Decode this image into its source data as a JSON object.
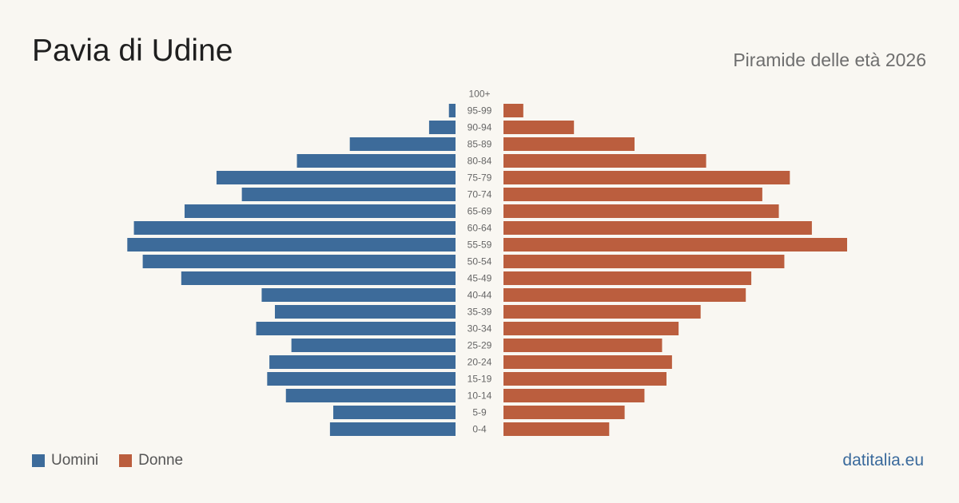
{
  "header": {
    "title": "Pavia di Udine",
    "subtitle": "Piramide delle età 2026"
  },
  "legend": {
    "male_label": "Uomini",
    "female_label": "Donne"
  },
  "brand": "datitalia.eu",
  "colors": {
    "male": "#3d6b9a",
    "female": "#bb5e3e",
    "age_label": "#666666"
  },
  "chart_data": {
    "type": "bar",
    "orientation": "horizontal-pyramid",
    "categories": [
      "100+",
      "95-99",
      "90-94",
      "85-89",
      "80-84",
      "75-79",
      "70-74",
      "65-69",
      "60-64",
      "55-59",
      "50-54",
      "45-49",
      "40-44",
      "35-39",
      "30-34",
      "25-29",
      "20-24",
      "15-19",
      "10-14",
      "5-9",
      "0-4"
    ],
    "series": [
      {
        "name": "Uomini",
        "values": [
          0,
          6,
          24,
          96,
          144,
          217,
          194,
          246,
          292,
          298,
          284,
          249,
          176,
          164,
          181,
          149,
          169,
          171,
          154,
          111,
          114
        ]
      },
      {
        "name": "Donne",
        "values": [
          0,
          18,
          64,
          119,
          184,
          260,
          235,
          250,
          280,
          312,
          255,
          225,
          220,
          179,
          159,
          144,
          153,
          148,
          128,
          110,
          96
        ]
      }
    ],
    "xlim": [
      0,
      312
    ],
    "grid": false,
    "legend_position": "bottom-left"
  }
}
